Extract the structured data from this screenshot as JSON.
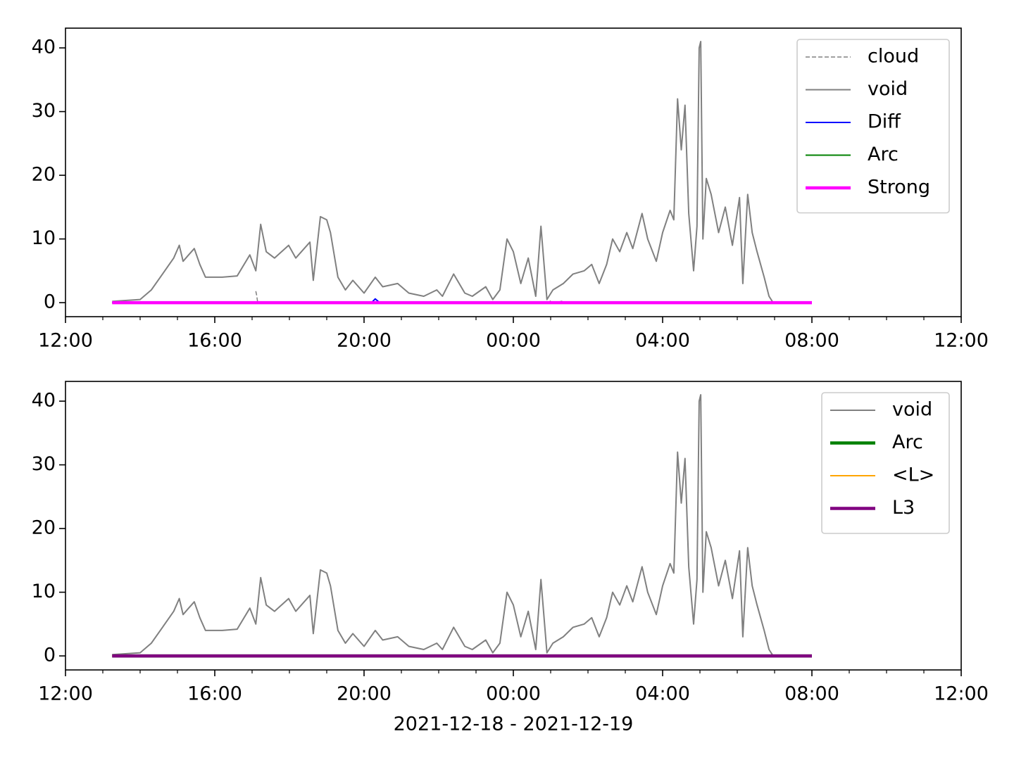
{
  "chart_data": [
    {
      "type": "line",
      "xlim": [
        0,
        24
      ],
      "ylim": [
        -2.2,
        43.1
      ],
      "xticks": [
        {
          "value": 0,
          "label": "12:00"
        },
        {
          "value": 4,
          "label": "16:00"
        },
        {
          "value": 8,
          "label": "20:00"
        },
        {
          "value": 12,
          "label": "00:00"
        },
        {
          "value": 16,
          "label": "04:00"
        },
        {
          "value": 20,
          "label": "08:00"
        },
        {
          "value": 24,
          "label": "12:00"
        }
      ],
      "yticks": [
        0,
        10,
        20,
        30,
        40
      ],
      "legend": "upper right",
      "series": [
        {
          "name": "cloud",
          "color": "#808080",
          "linestyle": "dashed",
          "linewidth": 1.5,
          "x": [
            5.1,
            5.12,
            5.15,
            null,
            12.95,
            13.0,
            null,
            13.2,
            13.35
          ],
          "values": [
            1.8,
            1.2,
            0,
            null,
            0,
            0.3,
            null,
            0.1,
            0.3
          ]
        },
        {
          "name": "void",
          "color": "#808080",
          "linewidth": 2,
          "x": [
            1.25,
            2.0,
            2.3,
            2.6,
            2.9,
            3.05,
            3.15,
            3.3,
            3.45,
            3.6,
            3.75,
            4.2,
            4.6,
            4.94,
            5.1,
            5.23,
            5.38,
            5.6,
            5.98,
            6.17,
            6.55,
            6.64,
            6.83,
            7.0,
            7.1,
            7.3,
            7.5,
            7.7,
            8.0,
            8.3,
            8.5,
            8.9,
            9.2,
            9.6,
            9.95,
            10.1,
            10.4,
            10.7,
            10.9,
            11.26,
            11.45,
            11.64,
            11.83,
            12.0,
            12.2,
            12.4,
            12.6,
            12.74,
            12.9,
            13.06,
            13.34,
            13.6,
            13.9,
            14.1,
            14.3,
            14.5,
            14.66,
            14.85,
            15.04,
            15.2,
            15.45,
            15.6,
            15.83,
            16.0,
            16.2,
            16.3,
            16.4,
            16.5,
            16.6,
            16.7,
            16.83,
            16.92,
            16.98,
            17.02,
            17.08,
            17.17,
            17.3,
            17.5,
            17.68,
            17.87,
            18.06,
            18.15,
            18.28,
            18.4,
            18.53,
            18.72,
            18.85,
            18.94
          ],
          "values": [
            0.2,
            0.5,
            2,
            4.5,
            7,
            9,
            6.5,
            7.5,
            8.5,
            6,
            4,
            4,
            4.2,
            7.5,
            5,
            12.3,
            8,
            7,
            9,
            7,
            9.5,
            3.5,
            13.5,
            13,
            11,
            4,
            2,
            3.5,
            1.5,
            4,
            2.5,
            3,
            1.5,
            1,
            2,
            1,
            4.5,
            1.5,
            1,
            2.5,
            0.5,
            2,
            10,
            8,
            3,
            7,
            1,
            12,
            0.5,
            2,
            3,
            4.5,
            5,
            6,
            3,
            6,
            10,
            8,
            11,
            8.5,
            14,
            10,
            6.5,
            11,
            14.5,
            13,
            32,
            24,
            31,
            14,
            5,
            12,
            40,
            41,
            10,
            19.5,
            17,
            11,
            15,
            9,
            16.5,
            3,
            17,
            11,
            8,
            4,
            1,
            0.2
          ]
        },
        {
          "name": "Diff",
          "color": "#0000ff",
          "linewidth": 2,
          "x": [
            1.25,
            8.2,
            8.3,
            8.4,
            8.5,
            20
          ],
          "values": [
            0,
            0,
            0.6,
            0.1,
            0,
            0
          ]
        },
        {
          "name": "Arc",
          "color": "#008000",
          "linewidth": 2,
          "x": [
            1.25,
            20
          ],
          "values": [
            0,
            0
          ]
        },
        {
          "name": "Strong",
          "color": "#ff00ff",
          "linewidth": 4.5,
          "x": [
            1.25,
            20
          ],
          "values": [
            0,
            0
          ]
        }
      ]
    },
    {
      "type": "line",
      "xlim": [
        0,
        24
      ],
      "ylim": [
        -2.2,
        43.1
      ],
      "xlabel": "2021-12-18 - 2021-12-19",
      "xticks": [
        {
          "value": 0,
          "label": "12:00"
        },
        {
          "value": 4,
          "label": "16:00"
        },
        {
          "value": 8,
          "label": "20:00"
        },
        {
          "value": 12,
          "label": "00:00"
        },
        {
          "value": 16,
          "label": "04:00"
        },
        {
          "value": 20,
          "label": "08:00"
        },
        {
          "value": 24,
          "label": "12:00"
        }
      ],
      "yticks": [
        0,
        10,
        20,
        30,
        40
      ],
      "legend": "upper right",
      "series": [
        {
          "name": "void",
          "color": "#808080",
          "linewidth": 2,
          "x": [
            1.25,
            2.0,
            2.3,
            2.6,
            2.9,
            3.05,
            3.15,
            3.3,
            3.45,
            3.6,
            3.75,
            4.2,
            4.6,
            4.94,
            5.1,
            5.23,
            5.38,
            5.6,
            5.98,
            6.17,
            6.55,
            6.64,
            6.83,
            7.0,
            7.1,
            7.3,
            7.5,
            7.7,
            8.0,
            8.3,
            8.5,
            8.9,
            9.2,
            9.6,
            9.95,
            10.1,
            10.4,
            10.7,
            10.9,
            11.26,
            11.45,
            11.64,
            11.83,
            12.0,
            12.2,
            12.4,
            12.6,
            12.74,
            12.9,
            13.06,
            13.34,
            13.6,
            13.9,
            14.1,
            14.3,
            14.5,
            14.66,
            14.85,
            15.04,
            15.2,
            15.45,
            15.6,
            15.83,
            16.0,
            16.2,
            16.3,
            16.4,
            16.5,
            16.6,
            16.7,
            16.83,
            16.92,
            16.98,
            17.02,
            17.08,
            17.17,
            17.3,
            17.5,
            17.68,
            17.87,
            18.06,
            18.15,
            18.28,
            18.4,
            18.53,
            18.72,
            18.85,
            18.94
          ],
          "values": [
            0.2,
            0.5,
            2,
            4.5,
            7,
            9,
            6.5,
            7.5,
            8.5,
            6,
            4,
            4,
            4.2,
            7.5,
            5,
            12.3,
            8,
            7,
            9,
            7,
            9.5,
            3.5,
            13.5,
            13,
            11,
            4,
            2,
            3.5,
            1.5,
            4,
            2.5,
            3,
            1.5,
            1,
            2,
            1,
            4.5,
            1.5,
            1,
            2.5,
            0.5,
            2,
            10,
            8,
            3,
            7,
            1,
            12,
            0.5,
            2,
            3,
            4.5,
            5,
            6,
            3,
            6,
            10,
            8,
            11,
            8.5,
            14,
            10,
            6.5,
            11,
            14.5,
            13,
            32,
            24,
            31,
            14,
            5,
            12,
            40,
            41,
            10,
            19.5,
            17,
            11,
            15,
            9,
            16.5,
            3,
            17,
            11,
            8,
            4,
            1,
            0.2
          ]
        },
        {
          "name": "Arc",
          "color": "#008000",
          "linewidth": 4.5,
          "x": [
            1.25,
            20
          ],
          "values": [
            0,
            0
          ]
        },
        {
          "name": "<L>",
          "color": "#ffa500",
          "linewidth": 2,
          "x": [
            1.25,
            20
          ],
          "values": [
            0,
            0
          ]
        },
        {
          "name": "L3",
          "color": "#800080",
          "linewidth": 4.5,
          "x": [
            1.25,
            20
          ],
          "values": [
            0,
            0
          ]
        }
      ]
    }
  ]
}
